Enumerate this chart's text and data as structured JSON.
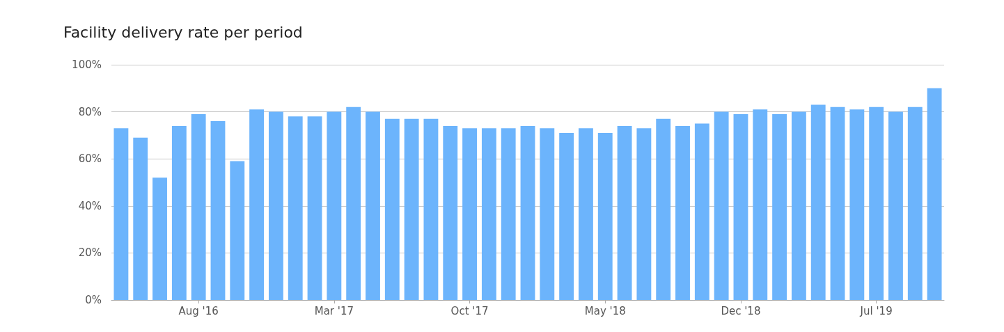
{
  "chart_data": {
    "type": "bar",
    "title": "Facility delivery rate per period",
    "categories": [
      null,
      null,
      null,
      null,
      "Aug '16",
      null,
      null,
      null,
      null,
      null,
      null,
      "Mar '17",
      null,
      null,
      null,
      null,
      null,
      null,
      "Oct '17",
      null,
      null,
      null,
      null,
      null,
      null,
      "May '18",
      null,
      null,
      null,
      null,
      null,
      null,
      "Dec '18",
      null,
      null,
      null,
      null,
      null,
      null,
      "Jul '19",
      null,
      null,
      null
    ],
    "values": [
      73,
      69,
      52,
      74,
      79,
      76,
      59,
      81,
      80,
      78,
      78,
      80,
      82,
      80,
      77,
      77,
      77,
      74,
      73,
      73,
      73,
      74,
      73,
      71,
      73,
      71,
      74,
      73,
      77,
      74,
      75,
      80,
      79,
      81,
      79,
      80,
      83,
      82,
      81,
      82,
      80,
      82,
      90
    ],
    "color": "#6cb4fc",
    "ylim": [
      0,
      100
    ],
    "yticks": [
      {
        "value": 0,
        "label": "0%"
      },
      {
        "value": 20,
        "label": "20%"
      },
      {
        "value": 40,
        "label": "40%"
      },
      {
        "value": 60,
        "label": "60%"
      },
      {
        "value": 80,
        "label": "80%"
      },
      {
        "value": 100,
        "label": "100%"
      }
    ],
    "grid": "y"
  }
}
